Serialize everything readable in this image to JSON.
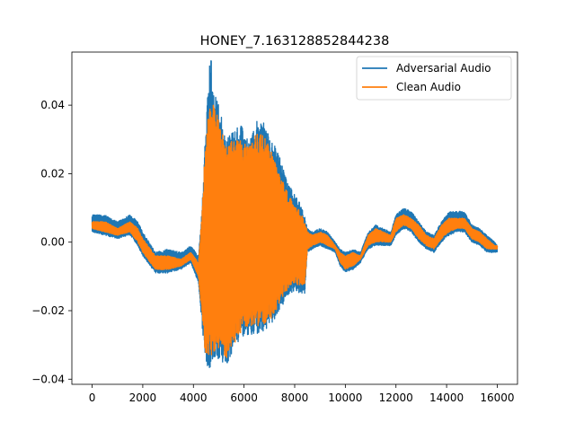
{
  "chart_data": {
    "type": "line",
    "title": "HONEY_7.163128852844238",
    "xlabel": "",
    "ylabel": "",
    "xlim": [
      -800,
      16800
    ],
    "ylim": [
      -0.0415,
      0.0555
    ],
    "xticks": [
      0,
      2000,
      4000,
      6000,
      8000,
      10000,
      12000,
      14000,
      16000
    ],
    "xtick_labels": [
      "0",
      "2000",
      "4000",
      "6000",
      "8000",
      "10000",
      "12000",
      "14000",
      "16000"
    ],
    "yticks": [
      -0.04,
      -0.02,
      0.0,
      0.02,
      0.04
    ],
    "ytick_labels": [
      "−0.04",
      "−0.02",
      "0.00",
      "0.02",
      "0.04"
    ],
    "grid": false,
    "legend_position": "upper right",
    "series": [
      {
        "name": "Adversarial Audio",
        "color": "#1f77b4",
        "envelope": {
          "x": [
            0,
            500,
            1000,
            1500,
            1800,
            2000,
            2500,
            3000,
            3500,
            3900,
            4200,
            4350,
            4450,
            4600,
            4700,
            4800,
            5000,
            5300,
            5600,
            5900,
            6200,
            6500,
            6800,
            7100,
            7400,
            7700,
            8000,
            8200,
            8400,
            8500,
            8700,
            9000,
            9300,
            9600,
            9800,
            10000,
            10300,
            10600,
            10900,
            11200,
            11500,
            11800,
            12000,
            12300,
            12600,
            12900,
            13200,
            13500,
            13800,
            14100,
            14400,
            14700,
            15000,
            15300,
            15600,
            15900,
            16000
          ],
          "upper": [
            0.008,
            0.008,
            0.006,
            0.008,
            0.006,
            0.003,
            -0.003,
            -0.002,
            -0.003,
            -0.001,
            -0.004,
            0.012,
            0.03,
            0.05,
            0.054,
            0.044,
            0.04,
            0.03,
            0.033,
            0.034,
            0.03,
            0.036,
            0.035,
            0.03,
            0.025,
            0.018,
            0.014,
            0.012,
            0.008,
            0.004,
            0.003,
            0.004,
            0.003,
            0.0,
            -0.002,
            -0.003,
            -0.002,
            -0.003,
            0.003,
            0.005,
            0.004,
            0.003,
            0.008,
            0.01,
            0.009,
            0.006,
            0.003,
            0.002,
            0.006,
            0.009,
            0.009,
            0.009,
            0.005,
            0.004,
            0.002,
            0.0,
            -0.001
          ],
          "lower": [
            0.003,
            0.002,
            0.001,
            0.002,
            -0.001,
            -0.004,
            -0.009,
            -0.009,
            -0.008,
            -0.006,
            -0.012,
            -0.025,
            -0.034,
            -0.037,
            -0.036,
            -0.034,
            -0.034,
            -0.036,
            -0.032,
            -0.028,
            -0.027,
            -0.027,
            -0.026,
            -0.024,
            -0.02,
            -0.016,
            -0.014,
            -0.015,
            -0.015,
            -0.003,
            -0.002,
            -0.001,
            -0.002,
            -0.003,
            -0.007,
            -0.009,
            -0.008,
            -0.006,
            -0.002,
            -0.001,
            -0.001,
            -0.001,
            0.002,
            0.004,
            0.003,
            0.0,
            -0.002,
            -0.003,
            0.0,
            0.002,
            0.003,
            0.003,
            0.0,
            -0.001,
            -0.003,
            -0.003,
            -0.003
          ]
        }
      },
      {
        "name": "Clean Audio",
        "color": "#ff7f0e",
        "envelope": {
          "x": [
            0,
            500,
            1000,
            1500,
            1800,
            2000,
            2500,
            3000,
            3500,
            3900,
            4200,
            4350,
            4450,
            4600,
            4700,
            4800,
            5000,
            5300,
            5600,
            5900,
            6200,
            6500,
            6800,
            7100,
            7400,
            7700,
            8000,
            8200,
            8400,
            8500,
            8700,
            9000,
            9300,
            9600,
            9800,
            10000,
            10300,
            10600,
            10900,
            11200,
            11500,
            11800,
            12000,
            12300,
            12600,
            12900,
            13200,
            13500,
            13800,
            14100,
            14400,
            14700,
            15000,
            15300,
            15600,
            15900,
            16000
          ],
          "upper": [
            0.006,
            0.006,
            0.004,
            0.006,
            0.004,
            0.001,
            -0.004,
            -0.004,
            -0.005,
            -0.003,
            -0.006,
            0.01,
            0.026,
            0.038,
            0.04,
            0.04,
            0.036,
            0.028,
            0.03,
            0.03,
            0.028,
            0.032,
            0.031,
            0.026,
            0.02,
            0.015,
            0.011,
            0.009,
            0.006,
            0.003,
            0.002,
            0.003,
            0.002,
            -0.001,
            -0.003,
            -0.004,
            -0.003,
            -0.004,
            0.002,
            0.004,
            0.003,
            0.002,
            0.007,
            0.008,
            0.007,
            0.005,
            0.002,
            0.001,
            0.005,
            0.007,
            0.007,
            0.007,
            0.004,
            0.003,
            0.001,
            -0.001,
            -0.001
          ],
          "lower": [
            0.004,
            0.003,
            0.002,
            0.003,
            0.0,
            -0.003,
            -0.008,
            -0.008,
            -0.007,
            -0.005,
            -0.01,
            -0.022,
            -0.032,
            -0.034,
            -0.033,
            -0.032,
            -0.031,
            -0.034,
            -0.03,
            -0.026,
            -0.025,
            -0.025,
            -0.024,
            -0.022,
            -0.018,
            -0.014,
            -0.012,
            -0.013,
            -0.013,
            -0.002,
            -0.001,
            0.0,
            -0.001,
            -0.002,
            -0.006,
            -0.008,
            -0.007,
            -0.005,
            -0.001,
            0.0,
            0.0,
            0.0,
            0.003,
            0.005,
            0.004,
            0.001,
            -0.001,
            -0.002,
            0.001,
            0.003,
            0.004,
            0.004,
            0.001,
            0.0,
            -0.002,
            -0.002,
            -0.002
          ]
        }
      }
    ]
  }
}
